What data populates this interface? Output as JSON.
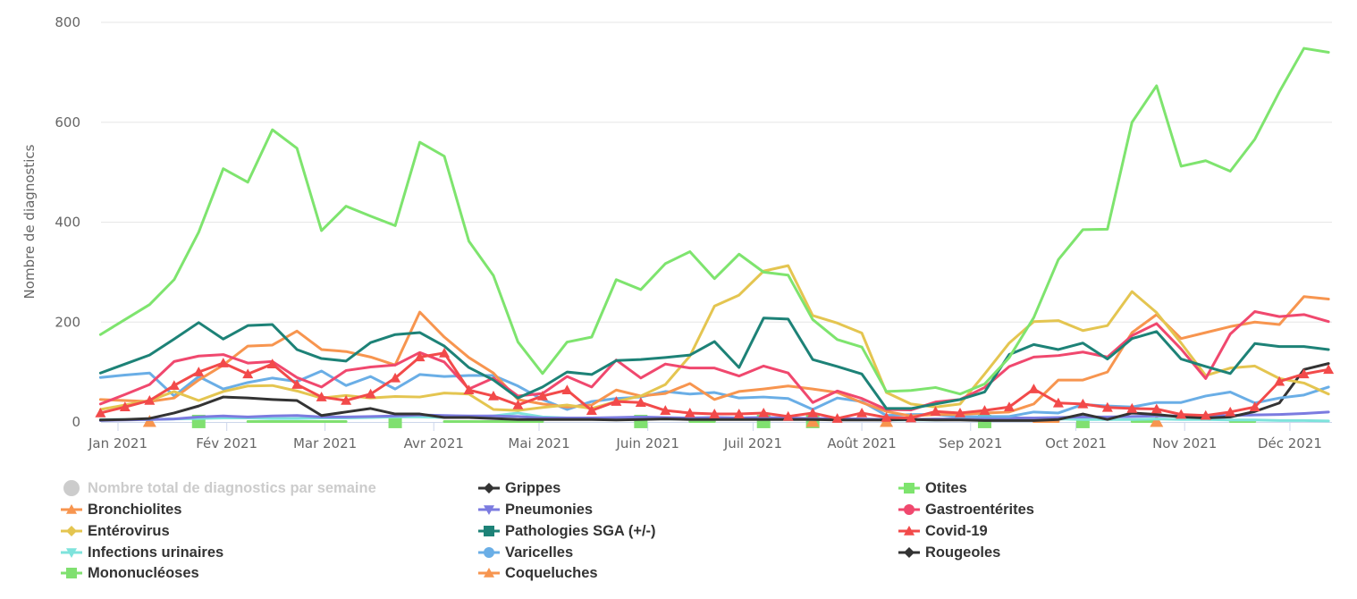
{
  "chart_data": {
    "type": "line",
    "title": "",
    "ylabel": "Nombre de diagnostics",
    "xlabel": "",
    "ylim": [
      0,
      800
    ],
    "yticks": [
      0,
      200,
      400,
      600,
      800
    ],
    "grid": true,
    "legend_position": "bottom",
    "x_start": "2020-12-27",
    "x_interval_days": 7,
    "xticks": [
      {
        "label": "Jan 2021",
        "date": "2021-01-01"
      },
      {
        "label": "Fév 2021",
        "date": "2021-02-01"
      },
      {
        "label": "Mar 2021",
        "date": "2021-03-01"
      },
      {
        "label": "Avr 2021",
        "date": "2021-04-01"
      },
      {
        "label": "Mai 2021",
        "date": "2021-05-01"
      },
      {
        "label": "Juin 2021",
        "date": "2021-06-01"
      },
      {
        "label": "Juil 2021",
        "date": "2021-07-01"
      },
      {
        "label": "Août 2021",
        "date": "2021-08-01"
      },
      {
        "label": "Sep 2021",
        "date": "2021-09-01"
      },
      {
        "label": "Oct 2021",
        "date": "2021-10-01"
      },
      {
        "label": "Nov 2021",
        "date": "2021-11-01"
      },
      {
        "label": "Déc 2021",
        "date": "2021-12-01"
      }
    ],
    "series": [
      {
        "name": "Nombre total de diagnostics par semaine",
        "color": "#cccccc",
        "marker": "circle",
        "visible": false,
        "values": []
      },
      {
        "name": "Bronchiolites",
        "color": "#f7954f",
        "marker": "triangle",
        "values": [
          45,
          43,
          41,
          48,
          84,
          114,
          152,
          154,
          182,
          145,
          141,
          130,
          114,
          220,
          170,
          129,
          98,
          45,
          36,
          30,
          34,
          64,
          52,
          57,
          77,
          45,
          61,
          66,
          72,
          66,
          59,
          39,
          21,
          12,
          15,
          15,
          18,
          20,
          36,
          84,
          84,
          100,
          179,
          215,
          167,
          179,
          191,
          200,
          195,
          251,
          246
        ]
      },
      {
        "name": "Entérovirus",
        "color": "#e4c550",
        "marker": "diamond",
        "values": [
          25,
          34,
          43,
          61,
          43,
          61,
          72,
          73,
          62,
          48,
          53,
          48,
          51,
          50,
          58,
          56,
          25,
          23,
          29,
          34,
          27,
          41,
          52,
          75,
          132,
          232,
          254,
          302,
          313,
          213,
          198,
          178,
          59,
          36,
          30,
          36,
          96,
          158,
          201,
          203,
          183,
          193,
          261,
          219,
          158,
          93,
          108,
          112,
          87,
          78,
          56
        ]
      },
      {
        "name": "Infections urinaires",
        "color": "#7ee3dc",
        "marker": "triangle-down",
        "values": [
          5,
          5,
          5,
          6,
          7,
          8,
          8,
          7,
          7,
          8,
          8,
          9,
          10,
          10,
          9,
          10,
          12,
          18,
          10,
          8,
          7,
          7,
          7,
          6,
          6,
          8,
          7,
          6,
          6,
          5,
          6,
          5,
          4,
          4,
          4,
          5,
          5,
          5,
          5,
          6,
          5,
          5,
          5,
          6,
          5,
          5,
          4,
          4,
          3,
          3,
          2
        ]
      },
      {
        "name": "Mononucléoses",
        "color": "#80e070",
        "marker": "square",
        "values": [
          null,
          null,
          null,
          null,
          1,
          null,
          1,
          1,
          1,
          1,
          1,
          null,
          1,
          null,
          1,
          1,
          1,
          1,
          1,
          null,
          null,
          null,
          1,
          null,
          1,
          1,
          null,
          1,
          null,
          1,
          null,
          null,
          null,
          null,
          null,
          null,
          1,
          null,
          null,
          null,
          1,
          null,
          1,
          1,
          null,
          null,
          1,
          1,
          null,
          null,
          null
        ]
      },
      {
        "name": "Grippes",
        "color": "#333333",
        "marker": "diamond",
        "values": [
          4,
          5,
          7,
          18,
          32,
          50,
          48,
          45,
          43,
          13,
          20,
          27,
          16,
          16,
          9,
          9,
          7,
          5,
          5,
          5,
          5,
          4,
          5,
          6,
          5,
          5,
          5,
          5,
          5,
          5,
          4,
          4,
          4,
          5,
          4,
          4,
          3,
          3,
          3,
          5,
          16,
          5,
          18,
          15,
          10,
          8,
          10,
          21,
          38,
          105,
          117
        ]
      },
      {
        "name": "Pneumonies",
        "color": "#7b7be0",
        "marker": "triangle-down",
        "values": [
          3,
          4,
          5,
          6,
          10,
          12,
          10,
          12,
          13,
          10,
          10,
          11,
          12,
          14,
          13,
          12,
          12,
          11,
          8,
          8,
          8,
          9,
          10,
          9,
          8,
          9,
          8,
          9,
          8,
          7,
          7,
          6,
          5,
          5,
          6,
          6,
          7,
          8,
          8,
          9,
          10,
          10,
          11,
          12,
          12,
          13,
          13,
          14,
          15,
          17,
          20
        ]
      },
      {
        "name": "Pathologies SGA (+/-)",
        "color": "#1d8277",
        "marker": "square",
        "values": [
          98,
          116,
          134,
          166,
          199,
          166,
          193,
          195,
          145,
          127,
          122,
          159,
          175,
          179,
          152,
          109,
          84,
          48,
          70,
          100,
          95,
          123,
          125,
          129,
          134,
          161,
          109,
          208,
          206,
          125,
          111,
          96,
          27,
          27,
          36,
          45,
          60,
          135,
          155,
          145,
          158,
          126,
          167,
          181,
          126,
          111,
          97,
          157,
          151,
          151,
          145
        ]
      },
      {
        "name": "Varicelles",
        "color": "#6aaee6",
        "marker": "circle",
        "values": [
          89,
          94,
          98,
          52,
          91,
          66,
          79,
          88,
          81,
          102,
          73,
          91,
          66,
          95,
          91,
          93,
          93,
          72,
          45,
          25,
          41,
          47,
          50,
          61,
          56,
          59,
          48,
          50,
          47,
          25,
          48,
          41,
          13,
          15,
          15,
          10,
          11,
          11,
          20,
          18,
          35,
          32,
          30,
          39,
          39,
          52,
          60,
          38,
          48,
          54,
          70
        ]
      },
      {
        "name": "Coqueluches",
        "color": "#f7954f",
        "marker": "triangle",
        "values": [
          null,
          null,
          1,
          null,
          null,
          null,
          null,
          null,
          null,
          null,
          null,
          null,
          null,
          null,
          null,
          null,
          null,
          null,
          null,
          null,
          null,
          null,
          null,
          null,
          null,
          null,
          null,
          null,
          null,
          1,
          null,
          null,
          1,
          null,
          null,
          null,
          null,
          null,
          1,
          1,
          null,
          null,
          null,
          1,
          null,
          null,
          null,
          null,
          null,
          null,
          null
        ]
      },
      {
        "name": "Otites",
        "color": "#7ee46e",
        "marker": "square",
        "values": [
          175,
          205,
          235,
          285,
          380,
          507,
          480,
          585,
          548,
          383,
          432,
          412,
          393,
          560,
          532,
          362,
          293,
          160,
          97,
          160,
          170,
          285,
          265,
          317,
          341,
          287,
          336,
          300,
          294,
          205,
          165,
          150,
          61,
          63,
          69,
          56,
          76,
          129,
          209,
          325,
          385,
          386,
          600,
          673,
          512,
          523,
          502,
          566,
          661,
          748,
          740
        ]
      },
      {
        "name": "Gastroentérites",
        "color": "#f0486e",
        "marker": "circle",
        "values": [
          36,
          55,
          75,
          121,
          132,
          135,
          118,
          121,
          89,
          70,
          103,
          110,
          114,
          139,
          120,
          66,
          88,
          52,
          57,
          91,
          70,
          124,
          88,
          116,
          108,
          108,
          92,
          112,
          98,
          39,
          62,
          47,
          25,
          24,
          40,
          45,
          69,
          111,
          130,
          133,
          140,
          130,
          173,
          197,
          146,
          87,
          176,
          221,
          211,
          215,
          201
        ]
      },
      {
        "name": "Covid-19",
        "color": "#f24a4a",
        "marker": "triangle",
        "show_markers": true,
        "values": [
          18,
          30,
          43,
          73,
          100,
          118,
          96,
          116,
          75,
          50,
          43,
          56,
          88,
          130,
          138,
          64,
          52,
          34,
          52,
          64,
          23,
          41,
          39,
          23,
          18,
          16,
          16,
          18,
          11,
          18,
          7,
          18,
          9,
          8,
          21,
          18,
          23,
          30,
          66,
          38,
          36,
          29,
          27,
          26,
          15,
          13,
          20,
          30,
          81,
          96,
          105
        ]
      },
      {
        "name": "Rougeoles",
        "color": "#333333",
        "marker": "diamond",
        "values": []
      }
    ]
  }
}
